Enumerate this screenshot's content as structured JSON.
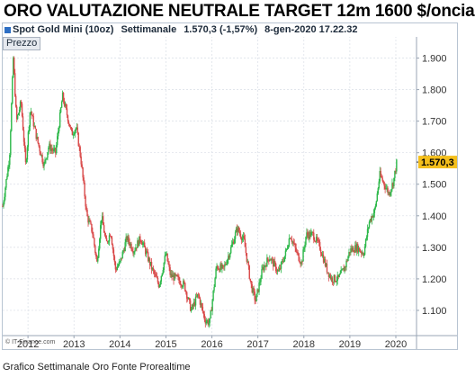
{
  "title": "ORO VALUTAZIONE NEUTRALE TARGET 12m 1600 $/oncia",
  "header": {
    "instrument": "Spot Gold Mini (10oz)",
    "period": "Settimanale",
    "last": "1.570,3 (-1,57%)",
    "datetime": "8-gen-2020 17.22.32"
  },
  "panel_label": "Prezzo",
  "watermark": "© IT-Finance.com",
  "caption": "Grafico Settimanale Oro Fonte Prorealtime",
  "colors": {
    "up": "#2db84a",
    "down": "#d94a4a",
    "price_tag": "#f4bf1c",
    "grid": "#d9dee6",
    "header_icon": "#2e6fc4"
  },
  "chart_data": {
    "type": "line",
    "series": [
      {
        "values": [
          [
            2011.45,
            1430
          ],
          [
            2011.6,
            1590
          ],
          [
            2011.68,
            1900
          ],
          [
            2011.75,
            1700
          ],
          [
            2011.85,
            1760
          ],
          [
            2011.95,
            1560
          ],
          [
            2012.05,
            1740
          ],
          [
            2012.2,
            1640
          ],
          [
            2012.35,
            1560
          ],
          [
            2012.45,
            1620
          ],
          [
            2012.6,
            1600
          ],
          [
            2012.75,
            1780
          ],
          [
            2012.85,
            1720
          ],
          [
            2012.95,
            1660
          ],
          [
            2013.05,
            1680
          ],
          [
            2013.15,
            1580
          ],
          [
            2013.28,
            1400
          ],
          [
            2013.4,
            1350
          ],
          [
            2013.5,
            1250
          ],
          [
            2013.6,
            1400
          ],
          [
            2013.7,
            1310
          ],
          [
            2013.8,
            1350
          ],
          [
            2013.9,
            1230
          ],
          [
            2014.0,
            1250
          ],
          [
            2014.15,
            1330
          ],
          [
            2014.3,
            1290
          ],
          [
            2014.45,
            1330
          ],
          [
            2014.55,
            1290
          ],
          [
            2014.7,
            1230
          ],
          [
            2014.85,
            1180
          ],
          [
            2015.0,
            1280
          ],
          [
            2015.1,
            1210
          ],
          [
            2015.25,
            1200
          ],
          [
            2015.4,
            1180
          ],
          [
            2015.55,
            1100
          ],
          [
            2015.7,
            1150
          ],
          [
            2015.85,
            1070
          ],
          [
            2015.95,
            1060
          ],
          [
            2016.1,
            1240
          ],
          [
            2016.25,
            1230
          ],
          [
            2016.4,
            1290
          ],
          [
            2016.55,
            1360
          ],
          [
            2016.7,
            1320
          ],
          [
            2016.85,
            1180
          ],
          [
            2016.95,
            1130
          ],
          [
            2017.1,
            1230
          ],
          [
            2017.25,
            1270
          ],
          [
            2017.45,
            1220
          ],
          [
            2017.6,
            1280
          ],
          [
            2017.7,
            1340
          ],
          [
            2017.85,
            1280
          ],
          [
            2017.95,
            1250
          ],
          [
            2018.05,
            1340
          ],
          [
            2018.2,
            1340
          ],
          [
            2018.35,
            1300
          ],
          [
            2018.5,
            1230
          ],
          [
            2018.6,
            1200
          ],
          [
            2018.75,
            1200
          ],
          [
            2018.9,
            1240
          ],
          [
            2019.0,
            1290
          ],
          [
            2019.15,
            1300
          ],
          [
            2019.3,
            1280
          ],
          [
            2019.42,
            1380
          ],
          [
            2019.55,
            1420
          ],
          [
            2019.65,
            1530
          ],
          [
            2019.75,
            1500
          ],
          [
            2019.85,
            1470
          ],
          [
            2019.95,
            1510
          ],
          [
            2020.02,
            1570
          ]
        ]
      }
    ],
    "xlabels": [
      "2012",
      "2013",
      "2014",
      "2015",
      "2016",
      "2017",
      "2018",
      "2019",
      "2020"
    ],
    "xlim": [
      2011.45,
      2020.45
    ],
    "ylabels": [
      "1.900",
      "1.800",
      "1.700",
      "1.600",
      "1.500",
      "1.400",
      "1.300",
      "1.200",
      "1.100"
    ],
    "yticks": [
      1900,
      1800,
      1700,
      1600,
      1500,
      1400,
      1300,
      1200,
      1100
    ],
    "ylim": [
      1020,
      1970
    ],
    "last_value": 1570.3,
    "last_label": "1.570,3",
    "grid": true
  }
}
